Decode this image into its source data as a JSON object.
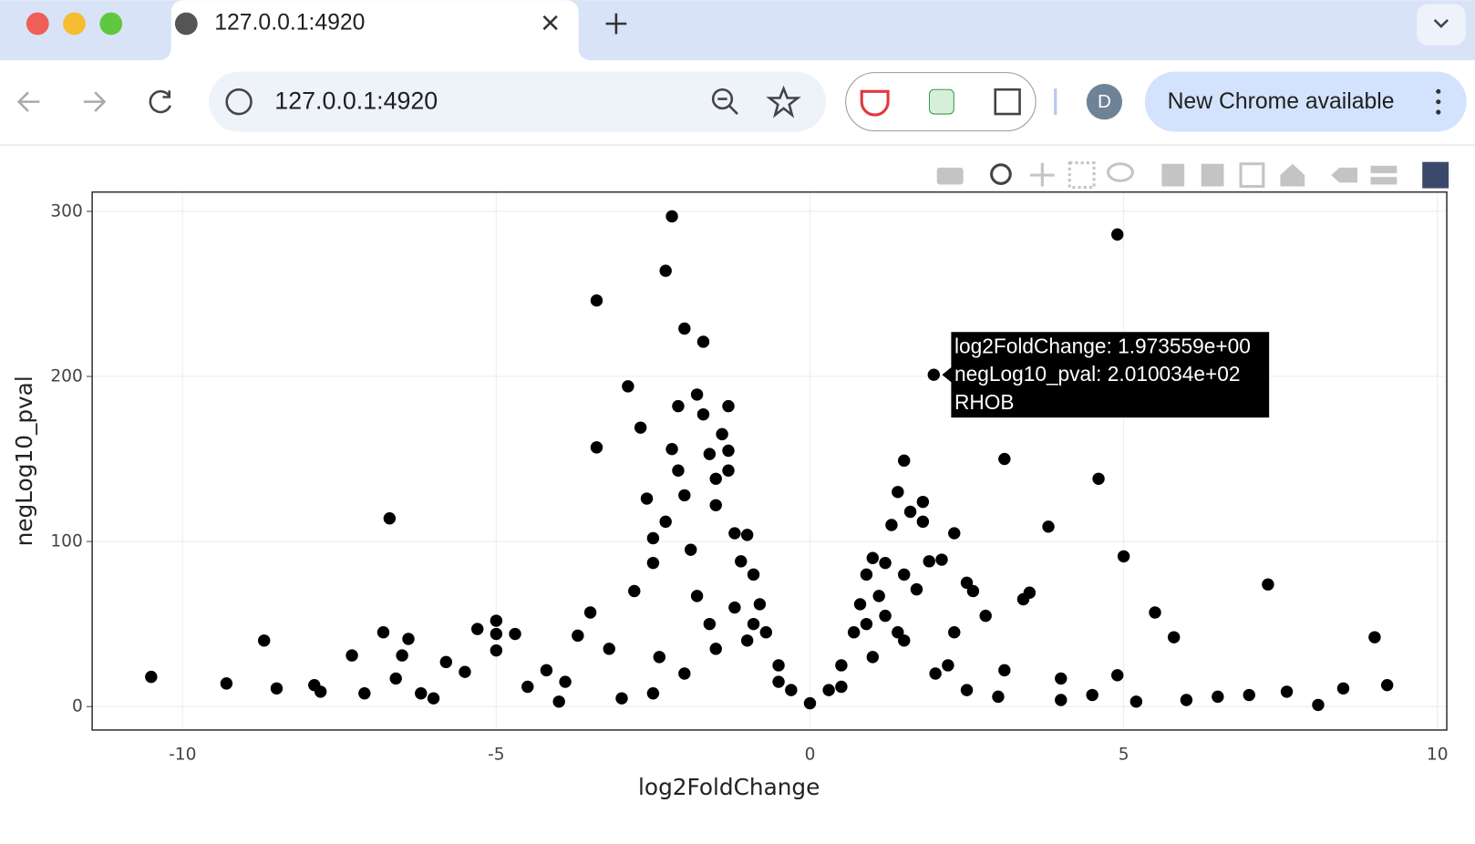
{
  "browser": {
    "tab_title": "127.0.0.1:4920",
    "address": "127.0.0.1:4920",
    "profile": "D",
    "update_button": "New Chrome available"
  },
  "chart_data": {
    "type": "scatter",
    "x_label": "log2FoldChange",
    "y_label": "negLog10_pval",
    "x": [
      -10.5,
      -9.3,
      -8.7,
      -8.5,
      -7.9,
      -7.8,
      -7.3,
      -7.1,
      -6.8,
      -6.7,
      -6.6,
      -6.5,
      -6.4,
      -6.2,
      -6,
      -5.8,
      -5.5,
      -5.3,
      -5,
      -5,
      -5,
      -4.7,
      -4.5,
      -4.2,
      -3.9,
      -3.7,
      -3.5,
      -3.4,
      -3.4,
      -3.2,
      -2.9,
      -2.8,
      -2.7,
      -2.6,
      -2.5,
      -2.5,
      -2.3,
      -2.3,
      -2.2,
      -2.2,
      -2.1,
      -2.1,
      -2,
      -2,
      -1.9,
      -1.8,
      -1.8,
      -1.7,
      -1.6,
      -1.7,
      -1.5,
      -1.5,
      -1.4,
      -1.3,
      -1.3,
      -1.3,
      -1.2,
      -1.1,
      -1,
      -0.9,
      -0.8,
      -0.7,
      -0.5,
      -0.3,
      0,
      0.3,
      0.5,
      0.7,
      0.8,
      0.9,
      1,
      1.1,
      1.2,
      1.3,
      1.4,
      1.5,
      1.5,
      1.6,
      1.7,
      1.8,
      1.8,
      1.9,
      1.973559,
      2.1,
      2.3,
      2.3,
      2.5,
      2.6,
      2.8,
      3.1,
      3.1,
      3.4,
      3.5,
      3.8,
      4,
      4.5,
      4.6,
      4.9,
      4.9,
      5,
      5.2,
      5.5,
      5.8,
      6,
      6.5,
      7,
      7.3,
      7.6,
      8.1,
      8.5,
      9,
      9.2,
      -4,
      -3,
      -2.5,
      -2,
      -1.5,
      -1,
      -0.5,
      0.5,
      1,
      1.5,
      2,
      2.5,
      3,
      4,
      -1.2,
      -0.9,
      0.9,
      1.2,
      -2.4,
      -1.6,
      1.4,
      2.2
    ],
    "values": [
      18,
      14,
      40,
      11,
      13,
      9,
      31,
      8,
      45,
      114,
      17,
      31,
      41,
      8,
      5,
      27,
      21,
      47,
      52,
      44,
      34,
      44,
      12,
      22,
      15,
      43,
      57,
      157,
      246,
      35,
      194,
      70,
      169,
      126,
      102,
      87,
      264,
      112,
      297,
      156,
      182,
      143,
      128,
      229,
      95,
      67,
      189,
      177,
      153,
      221,
      138,
      122,
      165,
      182,
      155,
      143,
      105,
      88,
      104,
      80,
      62,
      45,
      25,
      10,
      2,
      10,
      25,
      45,
      62,
      80,
      90,
      67,
      87,
      110,
      130,
      149,
      80,
      118,
      71,
      124,
      112,
      88,
      201.0034,
      89,
      105,
      45,
      75,
      70,
      55,
      150,
      22,
      65,
      69,
      109,
      17,
      7,
      138,
      286,
      19,
      91,
      3,
      57,
      42,
      4,
      6,
      7,
      74,
      9,
      1,
      11,
      42,
      13,
      3,
      5,
      8,
      20,
      35,
      40,
      15,
      12,
      30,
      40,
      20,
      10,
      6,
      4,
      60,
      50,
      50,
      55,
      30,
      50,
      45,
      25
    ],
    "color": "#000000",
    "xlim": [
      -11.44,
      10.15
    ],
    "ylim": [
      -14.2,
      311.7
    ],
    "xticks": [
      -10,
      -5,
      0,
      5,
      10
    ],
    "yticks": [
      0,
      100,
      200,
      300
    ],
    "grid": true,
    "hover_index": 82,
    "hover_label": [
      "log2FoldChange:  1.973559e+00",
      "negLog10_pval: 2.010034e+02",
      "RHOB"
    ]
  }
}
